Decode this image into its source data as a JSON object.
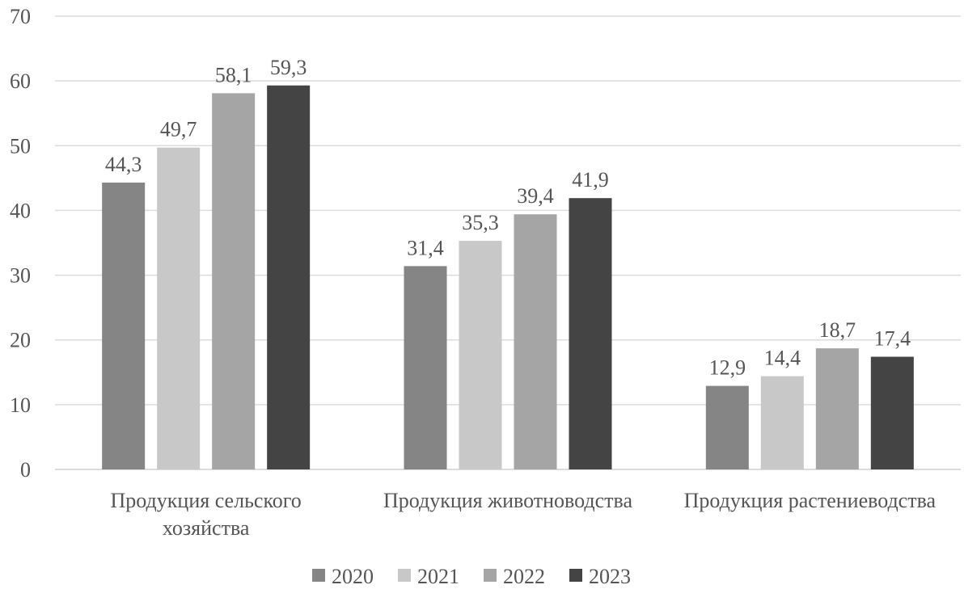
{
  "chart_data": {
    "type": "bar",
    "categories": [
      "Продукция сельского хозяйства",
      "Продукция животноводства",
      "Продукция растениеводства"
    ],
    "category_lines": [
      [
        "Продукция сельского",
        "хозяйства"
      ],
      [
        "Продукция животноводства"
      ],
      [
        "Продукция растениеводства"
      ]
    ],
    "series": [
      {
        "name": "2020",
        "values": [
          44.3,
          31.4,
          12.9
        ],
        "labels": [
          "44,3",
          "31,4",
          "12,9"
        ],
        "color": "#858585"
      },
      {
        "name": "2021",
        "values": [
          49.7,
          35.3,
          14.4
        ],
        "labels": [
          "49,7",
          "35,3",
          "14,4"
        ],
        "color": "#c8c8c8"
      },
      {
        "name": "2022",
        "values": [
          58.1,
          39.4,
          18.7
        ],
        "labels": [
          "58,1",
          "39,4",
          "18,7"
        ],
        "color": "#a5a5a5"
      },
      {
        "name": "2023",
        "values": [
          59.3,
          41.9,
          17.4
        ],
        "labels": [
          "59,3",
          "41,9",
          "17,4"
        ],
        "color": "#444444"
      }
    ],
    "ylim": [
      0,
      70
    ],
    "yticks": [
      "0",
      "10",
      "20",
      "30",
      "40",
      "50",
      "60",
      "70"
    ],
    "grid": true,
    "legend_position": "bottom",
    "title": "",
    "xlabel": "",
    "ylabel": ""
  }
}
